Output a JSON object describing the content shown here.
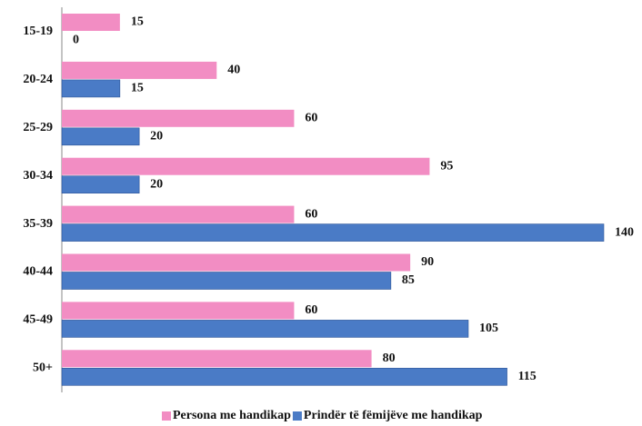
{
  "chart_data": {
    "type": "hbar",
    "categories": [
      "15-19",
      "20-24",
      "25-29",
      "30-34",
      "35-39",
      "40-44",
      "45-49",
      "50+"
    ],
    "series": [
      {
        "name": "Persona me handikap",
        "color": "#f28dc3",
        "values": [
          15,
          40,
          60,
          95,
          60,
          90,
          60,
          80
        ]
      },
      {
        "name": "Prindër të fëmijëve me handikap",
        "color": "#4a7bc6",
        "values": [
          0,
          15,
          20,
          20,
          140,
          85,
          105,
          115
        ]
      }
    ],
    "legend": "bottom"
  }
}
